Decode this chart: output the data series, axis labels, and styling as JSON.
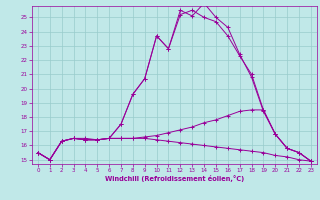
{
  "xlabel": "Windchill (Refroidissement éolien,°C)",
  "bg_color": "#c0e8e8",
  "line_color": "#990099",
  "grid_color": "#99cccc",
  "xlim": [
    -0.5,
    23.5
  ],
  "ylim": [
    14.7,
    25.8
  ],
  "yticks": [
    15,
    16,
    17,
    18,
    19,
    20,
    21,
    22,
    23,
    24,
    25
  ],
  "xticks": [
    0,
    1,
    2,
    3,
    4,
    5,
    6,
    7,
    8,
    9,
    10,
    11,
    12,
    13,
    14,
    15,
    16,
    17,
    18,
    19,
    20,
    21,
    22,
    23
  ],
  "lines": [
    {
      "x": [
        0,
        1,
        2,
        3,
        4,
        5,
        6,
        7,
        8,
        9,
        10,
        11,
        12,
        13,
        14,
        15,
        16,
        17,
        18,
        19,
        20,
        21,
        22,
        23
      ],
      "y": [
        15.5,
        15.0,
        16.3,
        16.5,
        16.5,
        16.4,
        16.5,
        17.5,
        19.6,
        20.7,
        23.7,
        22.8,
        25.2,
        25.5,
        25.0,
        24.7,
        23.7,
        22.3,
        21.0,
        18.5,
        16.8,
        15.8,
        15.5,
        14.9
      ]
    },
    {
      "x": [
        0,
        1,
        2,
        3,
        4,
        5,
        6,
        7,
        8,
        9,
        10,
        11,
        12,
        13,
        14,
        15,
        16,
        17,
        18,
        19,
        20,
        21,
        22,
        23
      ],
      "y": [
        15.5,
        15.0,
        16.3,
        16.5,
        16.4,
        16.4,
        16.5,
        16.5,
        16.5,
        16.6,
        16.7,
        16.9,
        17.1,
        17.3,
        17.6,
        17.8,
        18.1,
        18.4,
        18.5,
        18.5,
        16.8,
        15.8,
        15.5,
        14.9
      ]
    },
    {
      "x": [
        0,
        1,
        2,
        3,
        4,
        5,
        6,
        7,
        8,
        9,
        10,
        11,
        12,
        13,
        14,
        15,
        16,
        17,
        18,
        19,
        20,
        21,
        22,
        23
      ],
      "y": [
        15.5,
        15.0,
        16.3,
        16.5,
        16.4,
        16.4,
        16.5,
        17.5,
        19.6,
        20.7,
        23.7,
        22.8,
        25.5,
        25.1,
        26.0,
        25.0,
        24.3,
        22.4,
        20.8,
        18.4,
        16.8,
        15.8,
        15.5,
        14.9
      ]
    },
    {
      "x": [
        0,
        1,
        2,
        3,
        4,
        5,
        6,
        7,
        8,
        9,
        10,
        11,
        12,
        13,
        14,
        15,
        16,
        17,
        18,
        19,
        20,
        21,
        22,
        23
      ],
      "y": [
        15.5,
        15.0,
        16.3,
        16.5,
        16.4,
        16.4,
        16.5,
        16.5,
        16.5,
        16.5,
        16.4,
        16.3,
        16.2,
        16.1,
        16.0,
        15.9,
        15.8,
        15.7,
        15.6,
        15.5,
        15.3,
        15.2,
        15.0,
        14.9
      ]
    }
  ]
}
